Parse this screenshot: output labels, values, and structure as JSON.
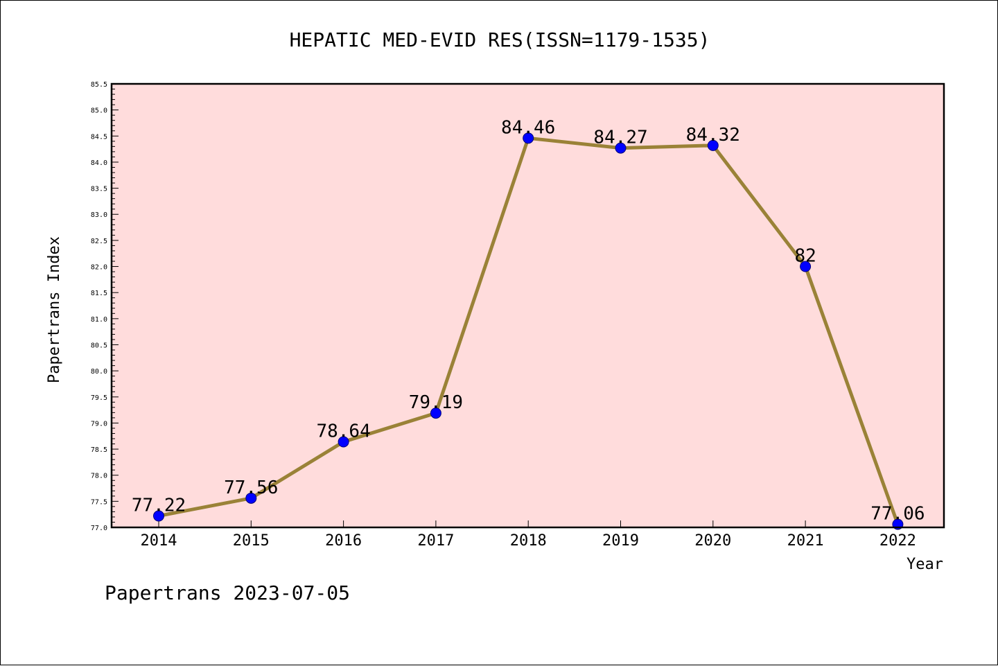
{
  "chart_data": {
    "type": "line",
    "title": "HEPATIC MED-EVID RES(ISSN=1179-1535)",
    "xlabel": "Year",
    "ylabel": "Papertrans Index",
    "categories": [
      "2014",
      "2015",
      "2016",
      "2017",
      "2018",
      "2019",
      "2020",
      "2021",
      "2022"
    ],
    "series": [
      {
        "values": [
          77.22,
          77.56,
          78.64,
          79.19,
          84.46,
          84.27,
          84.32,
          82,
          77.06
        ],
        "labels": [
          "77.22",
          "77.56",
          "78.64",
          "79.19",
          "84.46",
          "84.27",
          "84.32",
          "82",
          "77.06"
        ]
      }
    ],
    "ylim": [
      77.0,
      85.5
    ],
    "yticks": [
      "77.0",
      "77.5",
      "78.0",
      "78.5",
      "79.0",
      "79.5",
      "80.0",
      "80.5",
      "81.0",
      "81.5",
      "82.0",
      "82.5",
      "83.0",
      "83.5",
      "84.0",
      "84.5",
      "85.0",
      "85.5"
    ],
    "grid": false,
    "colors": {
      "plot_background": "#ffdcdc",
      "line": "#9a8237",
      "marker": "#0000ff"
    }
  },
  "footer": {
    "text": "Papertrans 2023-07-05"
  }
}
